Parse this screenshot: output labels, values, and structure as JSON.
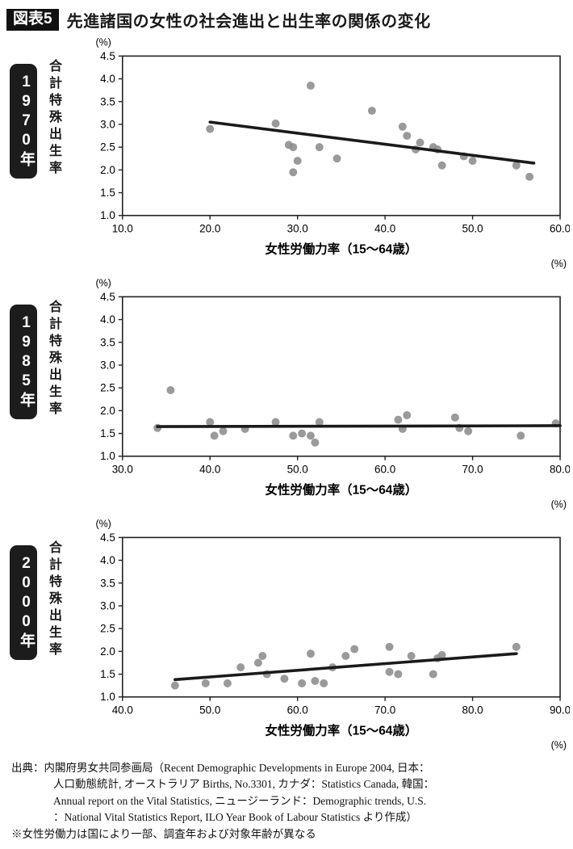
{
  "header": {
    "badge": "図表5",
    "title": "先進諸国の女性の社会進出と出生率の関係の変化"
  },
  "colors": {
    "dot": "#8c8c8c",
    "trend": "#1a1a1a",
    "frame": "#222222",
    "badge_bg": "#1c1c1c"
  },
  "chart_data": [
    {
      "type": "scatter",
      "year_label": "1970年",
      "ylabel": "合計特殊出生率",
      "y_unit": "(%)",
      "x_unit": "(%)",
      "xlabel": "女性労働力率（15〜64歳）",
      "xlim": [
        10,
        60
      ],
      "xticks": [
        10.0,
        20.0,
        30.0,
        40.0,
        50.0,
        60.0
      ],
      "ylim": [
        1.0,
        4.5
      ],
      "yticks": [
        1.0,
        1.5,
        2.0,
        2.5,
        3.0,
        3.5,
        4.0,
        4.5
      ],
      "points": [
        [
          20,
          2.9
        ],
        [
          27.5,
          3.02
        ],
        [
          29,
          2.55
        ],
        [
          29.5,
          2.5
        ],
        [
          30,
          2.2
        ],
        [
          29.5,
          1.95
        ],
        [
          31.5,
          3.85
        ],
        [
          32.5,
          2.5
        ],
        [
          34.5,
          2.25
        ],
        [
          38.5,
          3.3
        ],
        [
          42,
          2.95
        ],
        [
          42.5,
          2.75
        ],
        [
          43.5,
          2.45
        ],
        [
          44,
          2.6
        ],
        [
          45.5,
          2.5
        ],
        [
          46,
          2.45
        ],
        [
          46.5,
          2.1
        ],
        [
          49,
          2.3
        ],
        [
          50,
          2.2
        ],
        [
          55,
          2.1
        ],
        [
          56.5,
          1.85
        ]
      ],
      "trend": {
        "x1": 20,
        "y1": 3.05,
        "x2": 57,
        "y2": 2.15
      }
    },
    {
      "type": "scatter",
      "year_label": "1985年",
      "ylabel": "合計特殊出生率",
      "y_unit": "(%)",
      "x_unit": "(%)",
      "xlabel": "女性労働力率（15〜64歳）",
      "xlim": [
        30,
        80
      ],
      "xticks": [
        30.0,
        40.0,
        50.0,
        60.0,
        70.0,
        80.0
      ],
      "ylim": [
        1.0,
        4.5
      ],
      "yticks": [
        1.0,
        1.5,
        2.0,
        2.5,
        3.0,
        3.5,
        4.0,
        4.5
      ],
      "points": [
        [
          34,
          1.62
        ],
        [
          35.5,
          2.45
        ],
        [
          40,
          1.75
        ],
        [
          40.5,
          1.45
        ],
        [
          41.5,
          1.55
        ],
        [
          44,
          1.6
        ],
        [
          47.5,
          1.75
        ],
        [
          49.5,
          1.45
        ],
        [
          50.5,
          1.5
        ],
        [
          51.5,
          1.45
        ],
        [
          52,
          1.3
        ],
        [
          52.5,
          1.75
        ],
        [
          61.5,
          1.8
        ],
        [
          62.5,
          1.9
        ],
        [
          62,
          1.6
        ],
        [
          68,
          1.85
        ],
        [
          68.5,
          1.62
        ],
        [
          69.5,
          1.55
        ],
        [
          75.5,
          1.45
        ],
        [
          79.5,
          1.72
        ]
      ],
      "trend": {
        "x1": 34,
        "y1": 1.65,
        "x2": 80,
        "y2": 1.67
      }
    },
    {
      "type": "scatter",
      "year_label": "2000年",
      "ylabel": "合計特殊出生率",
      "y_unit": "(%)",
      "x_unit": "(%)",
      "xlabel": "女性労働力率（15〜64歳）",
      "xlim": [
        40,
        90
      ],
      "xticks": [
        40.0,
        50.0,
        60.0,
        70.0,
        80.0,
        90.0
      ],
      "ylim": [
        1.0,
        4.5
      ],
      "yticks": [
        1.0,
        1.5,
        2.0,
        2.5,
        3.0,
        3.5,
        4.0,
        4.5
      ],
      "points": [
        [
          46,
          1.25
        ],
        [
          49.5,
          1.3
        ],
        [
          52,
          1.3
        ],
        [
          53.5,
          1.65
        ],
        [
          55.5,
          1.75
        ],
        [
          56,
          1.9
        ],
        [
          56.5,
          1.5
        ],
        [
          58.5,
          1.4
        ],
        [
          60.5,
          1.3
        ],
        [
          61.5,
          1.95
        ],
        [
          62,
          1.35
        ],
        [
          63,
          1.3
        ],
        [
          64,
          1.65
        ],
        [
          65.5,
          1.9
        ],
        [
          66.5,
          2.05
        ],
        [
          70.5,
          2.1
        ],
        [
          70.5,
          1.55
        ],
        [
          71.5,
          1.5
        ],
        [
          73,
          1.9
        ],
        [
          75.5,
          1.5
        ],
        [
          76,
          1.85
        ],
        [
          76.5,
          1.92
        ],
        [
          85,
          2.1
        ]
      ],
      "trend": {
        "x1": 46,
        "y1": 1.38,
        "x2": 85,
        "y2": 1.95
      }
    }
  ],
  "footer": {
    "source_lines": [
      "出典：内閣府男女共同参画局（Recent Demographic Developments in Europe 2004, 日本：",
      "人口動態統計, オーストラリア Births, No.3301, カナダ：Statistics Canada, 韓国：",
      "Annual report on the Vital Statistics, ニュージーランド：Demographic trends, U.S.",
      "：National Vital Statistics Report, ILO Year Book of Labour Statistics より作成）"
    ],
    "note": "※女性労働力は国により一部、調査年および対象年齢が異なる"
  }
}
